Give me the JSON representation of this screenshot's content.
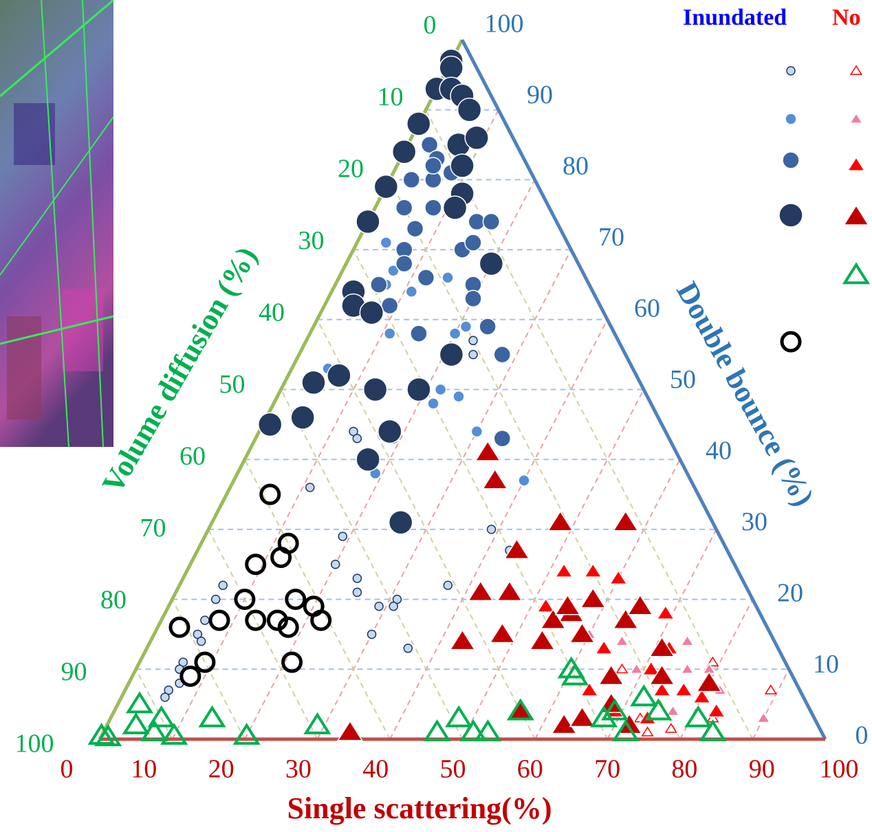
{
  "chart_data": {
    "type": "ternary",
    "x_label": "Single scattering(%)",
    "left_label": "Volume diffusion (%)",
    "right_label": "Double bounce (%)",
    "legend_header_inundated": "Inundated",
    "legend_header_non": "No",
    "single_ticks": [
      0,
      10,
      20,
      30,
      40,
      50,
      60,
      70,
      80,
      90,
      100
    ],
    "volume_ticks": [
      0,
      10,
      20,
      30,
      40,
      50,
      60,
      70,
      80,
      90,
      100
    ],
    "double_ticks": [
      100,
      90,
      80,
      70,
      60,
      50,
      40,
      30,
      20,
      10,
      0
    ],
    "grid": true,
    "series": [
      {
        "marker": "circle",
        "color": "#c6d9f0",
        "stroke": "#1f3864",
        "size": 6,
        "single": [
          23,
          24,
          13,
          14,
          11,
          19,
          20,
          24,
          25,
          6,
          29,
          31,
          31,
          30,
          36,
          37,
          39,
          43,
          6,
          6,
          6,
          7,
          6,
          6,
          7,
          6,
          6
        ],
        "double": [
          57,
          55,
          44,
          43,
          36,
          29,
          25,
          23,
          21,
          22,
          19,
          20,
          19,
          15,
          13,
          22,
          30,
          27,
          20,
          17,
          15,
          14,
          11,
          10,
          8,
          7,
          6
        ]
      },
      {
        "marker": "circle",
        "color": "#558ed5",
        "stroke": "#ffffff",
        "size": 8,
        "single": [
          4,
          7,
          7,
          11,
          15,
          9,
          21,
          20,
          11,
          22,
          25,
          22,
          30,
          40,
          5,
          19,
          19
        ],
        "double": [
          71,
          67,
          65,
          64,
          66,
          62,
          59,
          58,
          58,
          50,
          49,
          48,
          44,
          37,
          53,
          38,
          43
        ]
      },
      {
        "marker": "circle",
        "color": "#3c64a0",
        "stroke": "#ffffff",
        "size": 12,
        "single": [
          3,
          5,
          3,
          6,
          8,
          4,
          8,
          7,
          15,
          17,
          7,
          15,
          16,
          8,
          12,
          19,
          20,
          24,
          15,
          28,
          34,
          6,
          9,
          5
        ],
        "double": [
          85,
          83,
          80,
          80,
          81,
          76,
          76,
          73,
          74,
          74,
          70,
          70,
          71,
          68,
          66,
          65,
          63,
          59,
          58,
          55,
          43,
          65,
          62,
          82
        ]
      },
      {
        "marker": "circle",
        "color": "#243a5e",
        "stroke": "#ffffff",
        "size": 17,
        "single": [
          0,
          0.5,
          0,
          2,
          4,
          6,
          0,
          0,
          7,
          9,
          9,
          0,
          11,
          11,
          0,
          20,
          3,
          4,
          7,
          4,
          7,
          13,
          19,
          21,
          18,
          1,
          5,
          17,
          26
        ],
        "double": [
          97,
          96,
          93,
          93,
          92,
          90,
          88,
          84,
          85,
          86,
          82,
          79,
          78,
          76,
          74,
          68,
          64,
          62,
          61,
          51,
          52,
          50,
          50,
          55,
          44,
          45,
          46,
          40,
          31
        ]
      },
      {
        "marker": "triangle",
        "color": "#ffffff",
        "stroke": "#ff0000",
        "size": 7,
        "single": [
          89,
          79,
          73,
          78,
          75,
          67,
          83
        ],
        "double": [
          7,
          11,
          3,
          1.5,
          1,
          10,
          3
        ]
      },
      {
        "marker": "triangle",
        "color": "#f47ba0",
        "stroke": "#ffffff",
        "size": 8,
        "single": [
          65,
          69,
          74,
          76,
          79,
          82,
          80,
          90,
          77,
          60
        ],
        "double": [
          14,
          10,
          14,
          10,
          10,
          7,
          6,
          3,
          4,
          15
        ]
      },
      {
        "marker": "triangle",
        "color": "#ff0000",
        "stroke": "#ffffff",
        "size": 11,
        "single": [
          52,
          56,
          60,
          69,
          72,
          71,
          77,
          74,
          80,
          63,
          64,
          69,
          74,
          83,
          52
        ],
        "double": [
          24,
          24,
          23,
          18,
          13,
          10,
          7,
          7,
          6,
          13,
          7,
          4,
          3,
          4,
          19
        ]
      },
      {
        "marker": "triangle",
        "color": "#c00000",
        "stroke": "#ffffff",
        "size": 16,
        "single": [
          33,
          36,
          44,
          48,
          57,
          42,
          46,
          43,
          48,
          54,
          56,
          58,
          64,
          65,
          59,
          34,
          63,
          65,
          66,
          68,
          72,
          71,
          73,
          80,
          54,
          55,
          56
        ],
        "double": [
          41,
          37,
          27,
          31,
          31,
          21,
          21,
          14,
          15,
          14,
          18,
          20,
          17,
          19,
          15,
          1,
          2,
          3,
          9,
          5,
          2,
          13,
          9,
          8,
          17,
          19,
          4
        ]
      },
      {
        "marker": "open-triangle",
        "color": "#00b050",
        "stroke": "#00b050",
        "size": 15,
        "single": [
          3,
          4,
          7,
          0,
          1,
          7,
          10,
          14,
          20,
          29,
          46,
          48,
          51,
          53,
          56,
          60,
          61,
          68,
          72,
          72,
          75,
          81,
          84,
          69
        ],
        "double": [
          5,
          2,
          3,
          0.5,
          0.3,
          1,
          0.5,
          3,
          0.5,
          2,
          1,
          3,
          1,
          1,
          4,
          10,
          9,
          3,
          1,
          6,
          4,
          3,
          1,
          4
        ]
      },
      {
        "marker": "open-circle",
        "color": "#000000",
        "stroke": "#000000",
        "size": 13,
        "single": [
          6,
          12,
          12,
          9,
          10,
          17,
          20,
          22,
          18,
          16,
          13,
          8,
          3,
          9,
          8,
          21
        ],
        "double": [
          35,
          28,
          26,
          25,
          20,
          20,
          19,
          17,
          16,
          17,
          17,
          17,
          16,
          11,
          9,
          11
        ]
      }
    ]
  }
}
